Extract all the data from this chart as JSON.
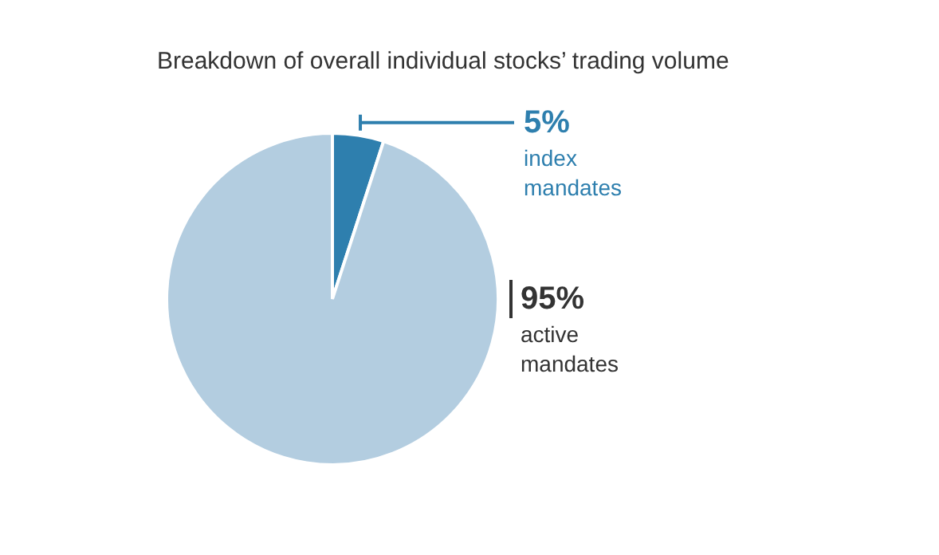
{
  "chart_data": {
    "type": "pie",
    "title": "Breakdown of overall individual stocks’ trading volume",
    "categories": [
      "index mandates",
      "active mandates"
    ],
    "values": [
      5,
      95
    ],
    "colors": [
      "#2e7fae",
      "#b3cde0"
    ],
    "value_labels": [
      "5%",
      "95%"
    ]
  }
}
